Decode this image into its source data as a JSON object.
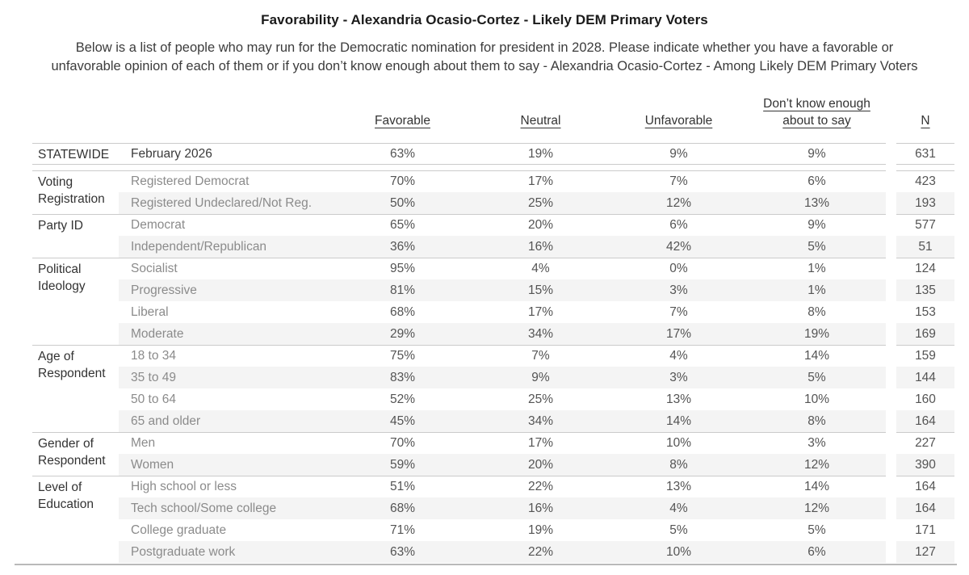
{
  "colors": {
    "band": "#f4f4f4",
    "grid_line": "#cbcbcb",
    "bottom_rule": "#b9b9b9",
    "category_text": "#333333",
    "row_label_text": "#8b8b8b",
    "value_text": "#545454"
  },
  "chart_data": {
    "type": "table",
    "title": "Favorability - Alexandria Ocasio-Cortez - Likely DEM Primary Voters",
    "subtitle_lines": [
      "Below is a list of people who may run for the Democratic nomination for president in 2028. Please indicate whether you have a favorable or",
      "unfavorable opinion of each of them or if you don’t know enough about them to say - Alexandria Ocasio-Cortez - Among Likely DEM Primary Voters"
    ],
    "columns": [
      "Favorable",
      "Neutral",
      "Unfavorable",
      "Don’t know enough about to say",
      "N"
    ],
    "groups": [
      {
        "category": "STATEWIDE",
        "rows": [
          {
            "label": "February 2026",
            "values": [
              "63%",
              "19%",
              "9%",
              "9%",
              "631"
            ]
          }
        ]
      },
      {
        "category": "Voting Registration",
        "rows": [
          {
            "label": "Registered Democrat",
            "values": [
              "70%",
              "17%",
              "7%",
              "6%",
              "423"
            ]
          },
          {
            "label": "Registered Undeclared/Not Reg.",
            "values": [
              "50%",
              "25%",
              "12%",
              "13%",
              "193"
            ]
          }
        ]
      },
      {
        "category": "Party ID",
        "rows": [
          {
            "label": "Democrat",
            "values": [
              "65%",
              "20%",
              "6%",
              "9%",
              "577"
            ]
          },
          {
            "label": "Independent/Republican",
            "values": [
              "36%",
              "16%",
              "42%",
              "5%",
              "51"
            ]
          }
        ]
      },
      {
        "category": "Political Ideology",
        "rows": [
          {
            "label": "Socialist",
            "values": [
              "95%",
              "4%",
              "0%",
              "1%",
              "124"
            ]
          },
          {
            "label": "Progressive",
            "values": [
              "81%",
              "15%",
              "3%",
              "1%",
              "135"
            ]
          },
          {
            "label": "Liberal",
            "values": [
              "68%",
              "17%",
              "7%",
              "8%",
              "153"
            ]
          },
          {
            "label": "Moderate",
            "values": [
              "29%",
              "34%",
              "17%",
              "19%",
              "169"
            ]
          }
        ]
      },
      {
        "category": "Age of Respondent",
        "rows": [
          {
            "label": "18 to 34",
            "values": [
              "75%",
              "7%",
              "4%",
              "14%",
              "159"
            ]
          },
          {
            "label": "35 to 49",
            "values": [
              "83%",
              "9%",
              "3%",
              "5%",
              "144"
            ]
          },
          {
            "label": "50 to 64",
            "values": [
              "52%",
              "25%",
              "13%",
              "10%",
              "160"
            ]
          },
          {
            "label": "65 and older",
            "values": [
              "45%",
              "34%",
              "14%",
              "8%",
              "164"
            ]
          }
        ]
      },
      {
        "category": "Gender of Respondent",
        "rows": [
          {
            "label": "Men",
            "values": [
              "70%",
              "17%",
              "10%",
              "3%",
              "227"
            ]
          },
          {
            "label": "Women",
            "values": [
              "59%",
              "20%",
              "8%",
              "12%",
              "390"
            ]
          }
        ]
      },
      {
        "category": "Level of Education",
        "rows": [
          {
            "label": "High school or less",
            "values": [
              "51%",
              "22%",
              "13%",
              "14%",
              "164"
            ]
          },
          {
            "label": "Tech school/Some college",
            "values": [
              "68%",
              "16%",
              "4%",
              "12%",
              "164"
            ]
          },
          {
            "label": "College graduate",
            "values": [
              "71%",
              "19%",
              "5%",
              "5%",
              "171"
            ]
          },
          {
            "label": "Postgraduate work",
            "values": [
              "63%",
              "22%",
              "10%",
              "6%",
              "127"
            ]
          }
        ]
      }
    ]
  }
}
